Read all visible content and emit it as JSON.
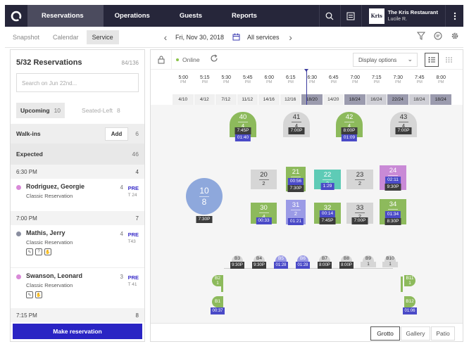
{
  "nav": {
    "tabs": [
      "Reservations",
      "Operations",
      "Guests",
      "Reports"
    ],
    "restaurant_logo": "Kris",
    "restaurant_name": "The Kris Restaurant",
    "user": "Lucile R."
  },
  "subnav": {
    "tabs": [
      "Snapshot",
      "Calendar",
      "Service"
    ],
    "date": "Fri, Nov 30, 2018",
    "services": "All services"
  },
  "left": {
    "title": "5/32 Reservations",
    "count": "84/136",
    "search_placeholder": "Search on Jun 22nd...",
    "upcoming_label": "Upcoming",
    "upcoming_count": "10",
    "seated_label": "Seated-Left",
    "seated_count": "8",
    "walkins_label": "Walk-ins",
    "add_label": "Add",
    "walkins_count": "6",
    "expected_label": "Expected",
    "expected_count": "46",
    "groups": [
      {
        "time": "6:30 PM",
        "count": "4"
      },
      {
        "time": "7:00 PM",
        "count": "7"
      },
      {
        "time": "7:15 PM",
        "count": "8"
      }
    ],
    "reservations": [
      {
        "name": "Rodriguez, Georgie",
        "type": "Classic Reservation",
        "party": "4",
        "tag": "PRE",
        "table": "T 24",
        "color": "#d98ad8"
      },
      {
        "name": "Mathis, Jerry",
        "type": "Classic Reservation",
        "party": "4",
        "tag": "PRE",
        "table": "T43",
        "color": "#8a8ea0"
      },
      {
        "name": "Swanson, Leonard",
        "type": "Classic Reservation",
        "party": "3",
        "tag": "PRE",
        "table": "T 41",
        "color": "#d98ad8"
      }
    ],
    "make_label": "Make reservation"
  },
  "floorbar": {
    "online_label": "Online",
    "display_label": "Display options"
  },
  "timeline": {
    "times": [
      "5:00",
      "5:15",
      "5:30",
      "5:45",
      "6:00",
      "6:15",
      "6:30",
      "6:45",
      "7:00",
      "7:15",
      "7:30",
      "7:45",
      "8:00"
    ],
    "pm": "PM",
    "covers": [
      "4/10",
      "4/12",
      "7/12",
      "11/12",
      "14/16",
      "12/16",
      "18/20",
      "14/20",
      "18/24",
      "16/24",
      "22/24",
      "18/24",
      "18/24"
    ]
  },
  "tables": [
    {
      "id": "40",
      "sub": "4",
      "badge": "7:45P",
      "badge2": "01:40",
      "color": "#8dba5c"
    },
    {
      "id": "41",
      "sub": "4",
      "badge": "7:00P",
      "color": "#d6d6d6"
    },
    {
      "id": "42",
      "sub": "4",
      "badge": "8:00P",
      "badge2": "01:09",
      "color": "#8dba5c"
    },
    {
      "id": "43",
      "sub": "4",
      "badge": "7:00P",
      "color": "#d6d6d6"
    },
    {
      "id": "10",
      "sub": "8",
      "badge": "7:30P",
      "color": "#8ea8dc"
    },
    {
      "id": "20",
      "sub": "2",
      "color": "#d6d6d6"
    },
    {
      "id": "21",
      "sub": "2",
      "badge": "00:56",
      "badge2": "7:30P",
      "color": "#8dba5c"
    },
    {
      "id": "22",
      "sub": "2",
      "badge": "1:29",
      "color": "#5ecbb6"
    },
    {
      "id": "23",
      "sub": "2",
      "color": "#d6d6d6"
    },
    {
      "id": "24",
      "sub": "2",
      "badge": "02:11",
      "badge2": "9:30P",
      "color": "#c98ad6"
    },
    {
      "id": "30",
      "sub": "4",
      "badge": "00:33",
      "color": "#8dba5c"
    },
    {
      "id": "31",
      "sub": "2",
      "badge": "01:21",
      "color": "#9b9be6"
    },
    {
      "id": "32",
      "sub": "2",
      "badge": "00:14",
      "badge2": "7:45P",
      "color": "#8dba5c"
    },
    {
      "id": "33",
      "sub": "2",
      "badge": "7:00P",
      "color": "#d6d6d6"
    },
    {
      "id": "34",
      "sub": "2",
      "badge": "01:34",
      "badge2": "8:30P",
      "color": "#8dba5c"
    }
  ],
  "bar_seats": [
    {
      "id": "B3",
      "badge": "9:30P"
    },
    {
      "id": "B4",
      "badge": "9:30P"
    },
    {
      "id": "B5",
      "badge": "01:28"
    },
    {
      "id": "B6",
      "badge": "01:28"
    },
    {
      "id": "B7",
      "badge": "8:00P"
    },
    {
      "id": "B8",
      "badge": "8:00P"
    },
    {
      "id": "B9",
      "sub": "1"
    },
    {
      "id": "B10",
      "sub": "1"
    }
  ],
  "side_seats": [
    {
      "id": "B2",
      "sub": "1"
    },
    {
      "id": "B1",
      "badge": "00:37"
    },
    {
      "id": "B11",
      "sub": "1"
    },
    {
      "id": "B12",
      "badge": "01:06"
    }
  ],
  "floors": [
    "Grotto",
    "Gallery",
    "Patio"
  ]
}
